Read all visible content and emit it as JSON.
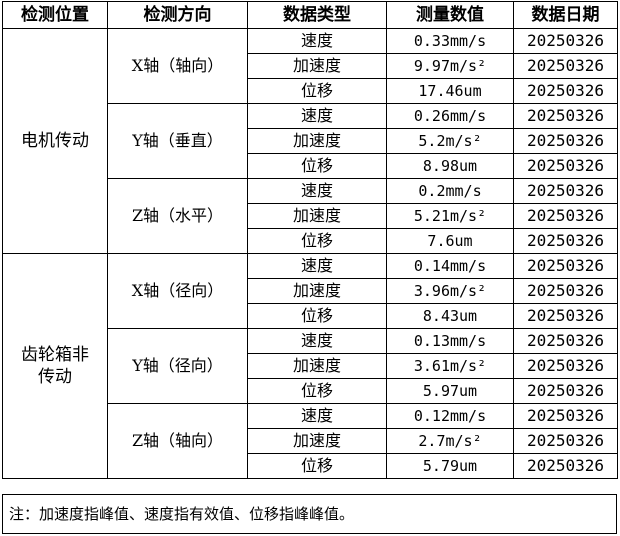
{
  "table": {
    "headers": [
      "检测位置",
      "检测方向",
      "数据类型",
      "测量数值",
      "数据日期"
    ],
    "groups": [
      {
        "location": "电机传动",
        "directions": [
          {
            "direction": "X轴（轴向）",
            "rows": [
              {
                "type": "速度",
                "value": "0.33mm/s",
                "date": "20250326"
              },
              {
                "type": "加速度",
                "value": "9.97m/s²",
                "date": "20250326"
              },
              {
                "type": "位移",
                "value": "17.46um",
                "date": "20250326"
              }
            ]
          },
          {
            "direction": "Y轴（垂直）",
            "rows": [
              {
                "type": "速度",
                "value": "0.26mm/s",
                "date": "20250326"
              },
              {
                "type": "加速度",
                "value": "5.2m/s²",
                "date": "20250326"
              },
              {
                "type": "位移",
                "value": "8.98um",
                "date": "20250326"
              }
            ]
          },
          {
            "direction": "Z轴（水平）",
            "rows": [
              {
                "type": "速度",
                "value": "0.2mm/s",
                "date": "20250326"
              },
              {
                "type": "加速度",
                "value": "5.21m/s²",
                "date": "20250326"
              },
              {
                "type": "位移",
                "value": "7.6um",
                "date": "20250326"
              }
            ]
          }
        ]
      },
      {
        "location": "齿轮箱非传动",
        "directions": [
          {
            "direction": "X轴（径向）",
            "rows": [
              {
                "type": "速度",
                "value": "0.14mm/s",
                "date": "20250326"
              },
              {
                "type": "加速度",
                "value": "3.96m/s²",
                "date": "20250326"
              },
              {
                "type": "位移",
                "value": "8.43um",
                "date": "20250326"
              }
            ]
          },
          {
            "direction": "Y轴（径向）",
            "rows": [
              {
                "type": "速度",
                "value": "0.13mm/s",
                "date": "20250326"
              },
              {
                "type": "加速度",
                "value": "3.61m/s²",
                "date": "20250326"
              },
              {
                "type": "位移",
                "value": "5.97um",
                "date": "20250326"
              }
            ]
          },
          {
            "direction": "Z轴（轴向）",
            "rows": [
              {
                "type": "速度",
                "value": "0.12mm/s",
                "date": "20250326"
              },
              {
                "type": "加速度",
                "value": "2.7m/s²",
                "date": "20250326"
              },
              {
                "type": "位移",
                "value": "5.79um",
                "date": "20250326"
              }
            ]
          }
        ]
      }
    ]
  },
  "note": "注：加速度指峰值、速度指有效值、位移指峰峰值。"
}
